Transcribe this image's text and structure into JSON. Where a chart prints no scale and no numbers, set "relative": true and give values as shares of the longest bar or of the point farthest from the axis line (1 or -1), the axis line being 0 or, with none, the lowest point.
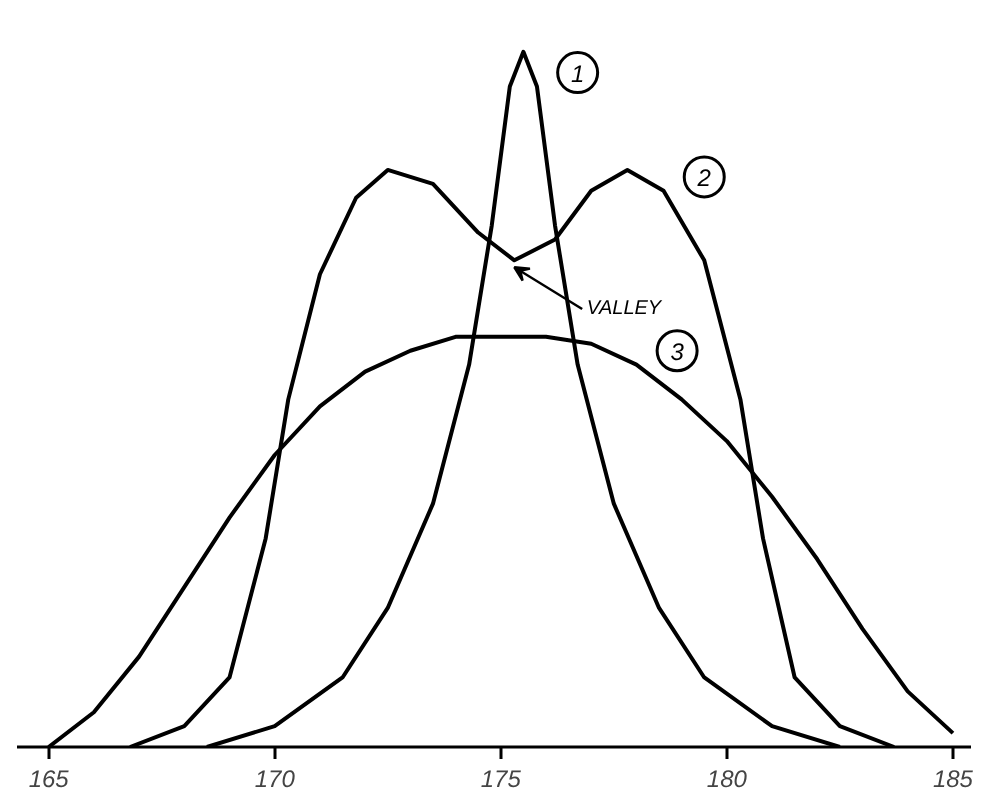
{
  "chart_data": {
    "type": "line",
    "relative": true,
    "xlim": [
      164.3,
      185.4
    ],
    "xticks": [
      165,
      170,
      175,
      180,
      185
    ],
    "grid": false,
    "marker": "none",
    "line_style": "solid",
    "annotations": [
      {
        "text": "VALLEY",
        "x": 175.3,
        "y": 0.7
      }
    ],
    "series": [
      {
        "name": "1",
        "color": "#000000",
        "x": [
          168.5,
          170,
          171.5,
          172.5,
          173.5,
          174.3,
          174.8,
          175.2,
          175.5,
          175.8,
          176.2,
          176.7,
          177.5,
          178.5,
          179.5,
          181,
          182.5
        ],
        "values": [
          0,
          0.03,
          0.1,
          0.2,
          0.35,
          0.55,
          0.75,
          0.95,
          1,
          0.95,
          0.75,
          0.55,
          0.35,
          0.2,
          0.1,
          0.03,
          0
        ]
      },
      {
        "name": "2",
        "color": "#000000",
        "x": [
          166.8,
          168,
          169,
          169.8,
          170.3,
          171,
          171.8,
          172.5,
          173.5,
          174.5,
          175.3,
          176.2,
          177,
          177.8,
          178.6,
          179.5,
          180.3,
          180.8,
          181.5,
          182.5,
          183.7
        ],
        "values": [
          0,
          0.03,
          0.1,
          0.3,
          0.5,
          0.68,
          0.79,
          0.83,
          0.81,
          0.74,
          0.7,
          0.73,
          0.8,
          0.83,
          0.8,
          0.7,
          0.5,
          0.3,
          0.1,
          0.03,
          0
        ]
      },
      {
        "name": "3",
        "color": "#000000",
        "x": [
          165,
          166,
          167,
          168,
          169,
          170,
          171,
          172,
          173,
          174,
          175,
          176,
          177,
          178,
          179,
          180,
          181,
          182,
          183,
          184,
          185
        ],
        "values": [
          0,
          0.05,
          0.13,
          0.23,
          0.33,
          0.42,
          0.49,
          0.54,
          0.57,
          0.59,
          0.59,
          0.59,
          0.58,
          0.55,
          0.5,
          0.44,
          0.36,
          0.27,
          0.17,
          0.08,
          0.02
        ]
      }
    ]
  }
}
